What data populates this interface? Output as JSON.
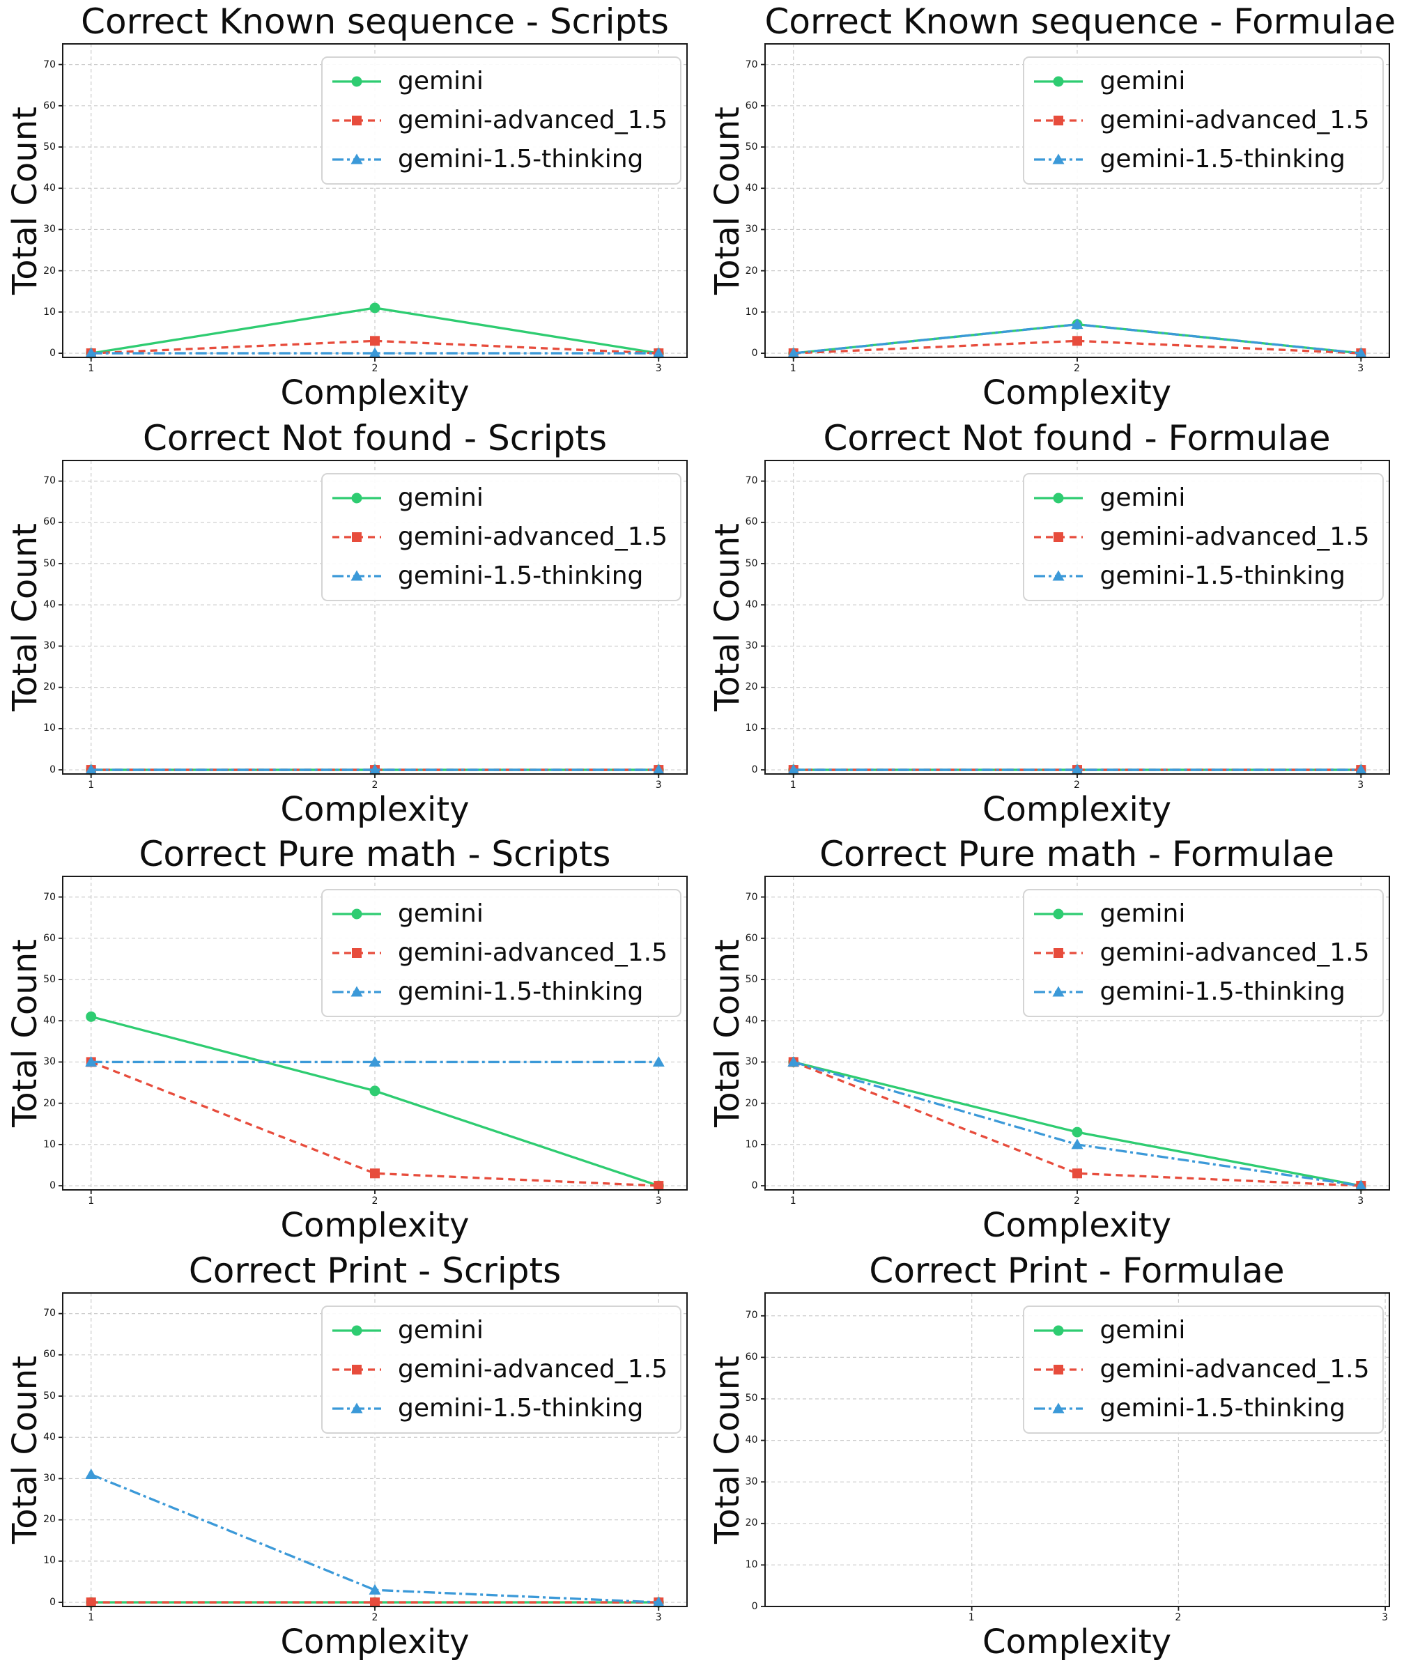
{
  "figure": {
    "background": "#ffffff"
  },
  "shared": {
    "xlabel": "Complexity",
    "ylabel": "Total Count",
    "yticks": [
      0,
      10,
      20,
      30,
      40,
      50,
      60,
      70
    ],
    "ylim": [
      -1,
      75
    ],
    "grid": true,
    "grid_color": "#cbcbcb",
    "legend_position": "upper right",
    "series_meta": [
      {
        "name": "gemini",
        "color": "#2ecc71",
        "linestyle": "solid",
        "marker": "circle"
      },
      {
        "name": "gemini-advanced_1.5",
        "color": "#e74c3c",
        "linestyle": "dashed",
        "marker": "square"
      },
      {
        "name": "gemini-1.5-thinking",
        "color": "#3b99d8",
        "linestyle": "dashdot",
        "marker": "triangle"
      }
    ]
  },
  "chart_data": [
    {
      "type": "line",
      "title": "Correct Known sequence - Scripts",
      "xlabel": "Complexity",
      "ylabel": "Total Count",
      "x": [
        1,
        2,
        3
      ],
      "xticks": [
        1,
        2,
        3
      ],
      "xlim": [
        0.9,
        3.1
      ],
      "series": [
        {
          "name": "gemini",
          "values": [
            0,
            11,
            0
          ]
        },
        {
          "name": "gemini-advanced_1.5",
          "values": [
            0,
            3,
            0
          ]
        },
        {
          "name": "gemini-1.5-thinking",
          "values": [
            0,
            0,
            0
          ]
        }
      ]
    },
    {
      "type": "line",
      "title": "Correct Known sequence - Formulae",
      "xlabel": "Complexity",
      "ylabel": "Total Count",
      "x": [
        1,
        2,
        3
      ],
      "xticks": [
        1,
        2,
        3
      ],
      "xlim": [
        0.9,
        3.1
      ],
      "series": [
        {
          "name": "gemini",
          "values": [
            0,
            7,
            0
          ]
        },
        {
          "name": "gemini-advanced_1.5",
          "values": [
            0,
            3,
            0
          ]
        },
        {
          "name": "gemini-1.5-thinking",
          "values": [
            0,
            7,
            0
          ]
        }
      ]
    },
    {
      "type": "line",
      "title": "Correct Not found - Scripts",
      "xlabel": "Complexity",
      "ylabel": "Total Count",
      "x": [
        1,
        2,
        3
      ],
      "xticks": [
        1,
        2,
        3
      ],
      "xlim": [
        0.9,
        3.1
      ],
      "series": [
        {
          "name": "gemini",
          "values": [
            0,
            0,
            0
          ]
        },
        {
          "name": "gemini-advanced_1.5",
          "values": [
            0,
            0,
            0
          ]
        },
        {
          "name": "gemini-1.5-thinking",
          "values": [
            0,
            0,
            0
          ]
        }
      ]
    },
    {
      "type": "line",
      "title": "Correct Not found - Formulae",
      "xlabel": "Complexity",
      "ylabel": "Total Count",
      "x": [
        1,
        2,
        3
      ],
      "xticks": [
        1,
        2,
        3
      ],
      "xlim": [
        0.9,
        3.1
      ],
      "series": [
        {
          "name": "gemini",
          "values": [
            0,
            0,
            0
          ]
        },
        {
          "name": "gemini-advanced_1.5",
          "values": [
            0,
            0,
            0
          ]
        },
        {
          "name": "gemini-1.5-thinking",
          "values": [
            0,
            0,
            0
          ]
        }
      ]
    },
    {
      "type": "line",
      "title": "Correct Pure math - Scripts",
      "xlabel": "Complexity",
      "ylabel": "Total Count",
      "x": [
        1,
        2,
        3
      ],
      "xticks": [
        1,
        2,
        3
      ],
      "xlim": [
        0.9,
        3.1
      ],
      "series": [
        {
          "name": "gemini",
          "values": [
            41,
            23,
            0
          ]
        },
        {
          "name": "gemini-advanced_1.5",
          "values": [
            30,
            3,
            0
          ]
        },
        {
          "name": "gemini-1.5-thinking",
          "values": [
            30,
            30,
            30
          ]
        }
      ]
    },
    {
      "type": "line",
      "title": "Correct Pure math - Formulae",
      "xlabel": "Complexity",
      "ylabel": "Total Count",
      "x": [
        1,
        2,
        3
      ],
      "xticks": [
        1,
        2,
        3
      ],
      "xlim": [
        0.9,
        3.1
      ],
      "series": [
        {
          "name": "gemini",
          "values": [
            30,
            13,
            0
          ]
        },
        {
          "name": "gemini-advanced_1.5",
          "values": [
            30,
            3,
            0
          ]
        },
        {
          "name": "gemini-1.5-thinking",
          "values": [
            30,
            10,
            0
          ]
        }
      ]
    },
    {
      "type": "line",
      "title": "Correct Print - Scripts",
      "xlabel": "Complexity",
      "ylabel": "Total Count",
      "x": [
        1,
        2,
        3
      ],
      "xticks": [
        1,
        2,
        3
      ],
      "xlim": [
        0.9,
        3.1
      ],
      "series": [
        {
          "name": "gemini",
          "values": [
            0,
            0,
            0
          ]
        },
        {
          "name": "gemini-advanced_1.5",
          "values": [
            0,
            0,
            0
          ]
        },
        {
          "name": "gemini-1.5-thinking",
          "values": [
            31,
            3,
            0
          ]
        }
      ]
    },
    {
      "type": "line",
      "title": "Correct Print - Formulae",
      "xlabel": "Complexity",
      "ylabel": "Total Count",
      "x": [],
      "xticks": [
        1,
        2,
        3
      ],
      "xlim": [
        0,
        3.02
      ],
      "ylim": [
        0,
        75.5
      ],
      "series": [
        {
          "name": "gemini",
          "values": []
        },
        {
          "name": "gemini-advanced_1.5",
          "values": []
        },
        {
          "name": "gemini-1.5-thinking",
          "values": []
        }
      ]
    }
  ]
}
